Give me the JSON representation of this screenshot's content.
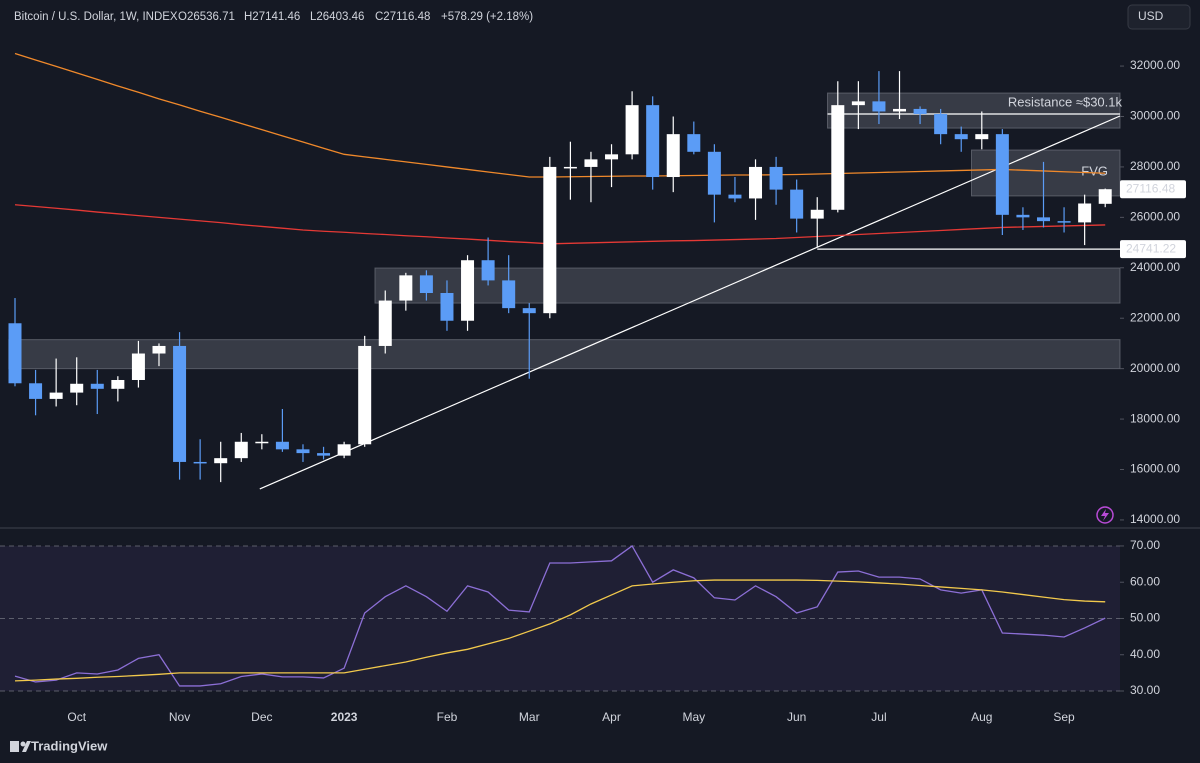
{
  "header": {
    "title": "Bitcoin / U.S. Dollar, 1W, INDEX",
    "ohlc": [
      "O26536.71",
      "H27141.46",
      "L26403.46",
      "C27116.48"
    ],
    "change": "+578.29 (+2.18%)",
    "currency": "USD",
    "brand": "TradingView"
  },
  "chart_data": [
    {
      "type": "candlestick",
      "categories": [
        null,
        null,
        null,
        "Oct",
        null,
        null,
        null,
        null,
        "Nov",
        null,
        null,
        null,
        "Dec",
        null,
        null,
        null,
        "2023",
        null,
        null,
        null,
        null,
        "Feb",
        null,
        null,
        null,
        "Mar",
        null,
        null,
        null,
        "Apr",
        null,
        null,
        null,
        "May",
        null,
        null,
        null,
        null,
        "Jun",
        null,
        null,
        null,
        "Jul",
        null,
        null,
        null,
        null,
        "Aug",
        null,
        null,
        null,
        "Sep",
        null,
        null
      ],
      "open": [
        21800,
        19420,
        18800,
        19050,
        19400,
        19200,
        19550,
        20600,
        20900,
        16300,
        16250,
        16450,
        17100,
        17100,
        16800,
        16650,
        16550,
        17000,
        20900,
        22700,
        23700,
        23000,
        21900,
        24300,
        23500,
        22400,
        22200,
        28000,
        28000,
        28300,
        28500,
        30450,
        27600,
        29300,
        28600,
        26900,
        26750,
        28000,
        27100,
        25950,
        26300,
        30450,
        30600,
        30200,
        30300,
        30100,
        29300,
        29100,
        29300,
        26100,
        26000,
        25850,
        25800,
        26536.71
      ],
      "high": [
        22800,
        19950,
        20400,
        20450,
        19950,
        19700,
        21100,
        21000,
        21450,
        17200,
        17100,
        17450,
        17400,
        18400,
        17000,
        16900,
        17100,
        21300,
        23100,
        23800,
        23900,
        23500,
        24500,
        25200,
        24500,
        22600,
        28400,
        29000,
        28600,
        28900,
        31000,
        30800,
        30000,
        29800,
        28900,
        27600,
        28300,
        28400,
        27500,
        26800,
        31400,
        31400,
        31800,
        31800,
        30400,
        30300,
        29600,
        30200,
        29500,
        26400,
        28200,
        26400,
        26900,
        27141.46
      ],
      "low": [
        19300,
        18150,
        18500,
        18550,
        18200,
        18700,
        19250,
        20100,
        15600,
        15600,
        15500,
        16300,
        16800,
        16700,
        16300,
        16400,
        16450,
        16900,
        20600,
        22300,
        22700,
        21500,
        21500,
        23300,
        22200,
        19600,
        22000,
        26700,
        26600,
        27200,
        28300,
        27100,
        27000,
        28500,
        25800,
        26600,
        25900,
        26500,
        25400,
        24800,
        26200,
        29500,
        29700,
        29900,
        29700,
        28900,
        28600,
        28700,
        25300,
        25500,
        25600,
        25400,
        24900,
        26403.46
      ],
      "close": [
        19420,
        18800,
        19050,
        19400,
        19200,
        19550,
        20600,
        20900,
        16300,
        16250,
        16450,
        17100,
        17100,
        16800,
        16650,
        16550,
        17000,
        20900,
        22700,
        23700,
        23000,
        21900,
        24300,
        23500,
        22400,
        22200,
        28000,
        28000,
        28300,
        28500,
        30450,
        27600,
        29300,
        28600,
        26900,
        26750,
        28000,
        27100,
        25950,
        26300,
        30450,
        30600,
        30200,
        30300,
        30100,
        29300,
        29100,
        29300,
        26100,
        26000,
        25850,
        25800,
        26550,
        27116.48
      ],
      "up_color": "#ffffff",
      "down_color": "#5b9cf6",
      "overlays": [
        {
          "color": "#f0892b",
          "values": [
            32500,
            32240,
            31990,
            31730,
            31470,
            31210,
            30960,
            30700,
            30460,
            30210,
            29970,
            29720,
            29480,
            29230,
            28990,
            28740,
            28500,
            28400,
            28300,
            28200,
            28100,
            28000,
            27900,
            27800,
            27700,
            27600,
            27600,
            27610,
            27620,
            27630,
            27640,
            27640,
            27650,
            27660,
            27670,
            27680,
            27680,
            27690,
            27700,
            27720,
            27740,
            27760,
            27780,
            27800,
            27820,
            27840,
            27860,
            27880,
            27900,
            27870,
            27840,
            27810,
            27780,
            27750
          ]
        },
        {
          "color": "#e53935",
          "values": [
            26500,
            26430,
            26360,
            26290,
            26210,
            26140,
            26070,
            26000,
            25930,
            25860,
            25790,
            25710,
            25640,
            25570,
            25500,
            25450,
            25410,
            25360,
            25320,
            25270,
            25230,
            25180,
            25140,
            25090,
            25040,
            25000,
            24950,
            24970,
            24990,
            25010,
            25030,
            25050,
            25070,
            25080,
            25100,
            25120,
            25140,
            25160,
            25200,
            25240,
            25280,
            25320,
            25360,
            25400,
            25440,
            25480,
            25520,
            25560,
            25600,
            25620,
            25640,
            25660,
            25680,
            25700
          ]
        }
      ],
      "zones": [
        {
          "low": 20000,
          "high": 21150,
          "color": "#787b86"
        },
        {
          "low": 22600,
          "high": 23990,
          "color": "#787b86"
        },
        {
          "low": 29540,
          "high": 30930,
          "color": "#787b86"
        },
        {
          "low": 26850,
          "high": 28670,
          "color": "#787b86",
          "label": "FVG"
        }
      ],
      "resistance": {
        "value": 30100,
        "label": "Resistance ≈$30.1k",
        "color": "#5b9cf6"
      },
      "support": {
        "value": 24741.22
      },
      "trendline": [
        15230,
        30020
      ],
      "ylim": [
        13720,
        34620
      ],
      "yticks": [
        {
          "value": 14000,
          "label": "14000.00"
        },
        {
          "value": 16000,
          "label": "16000.00"
        },
        {
          "value": 18000,
          "label": "18000.00"
        },
        {
          "value": 20000,
          "label": "20000.00"
        },
        {
          "value": 22000,
          "label": "22000.00"
        },
        {
          "value": 24000,
          "label": "24000.00"
        },
        {
          "value": 26000,
          "label": "26000.00"
        },
        {
          "value": 28000,
          "label": "28000.00"
        },
        {
          "value": 30000,
          "label": "30000.00"
        },
        {
          "value": 32000,
          "label": "32000.00"
        }
      ]
    },
    {
      "type": "line",
      "series": [
        {
          "color": "#8c6fd6",
          "values": [
            34.1,
            32.5,
            33.0,
            35.0,
            34.7,
            35.8,
            39.0,
            40.0,
            31.4,
            31.4,
            32.0,
            34.0,
            34.7,
            33.9,
            33.9,
            33.6,
            36.3,
            51.5,
            56.0,
            59.0,
            56.0,
            52.0,
            59.0,
            57.3,
            52.3,
            51.8,
            65.3,
            65.3,
            65.6,
            65.9,
            70.0,
            60.0,
            63.4,
            61.2,
            55.7,
            55.1,
            59.0,
            56.0,
            51.5,
            53.2,
            62.8,
            63.1,
            61.4,
            61.4,
            60.9,
            57.9,
            57.0,
            57.9,
            46.0,
            45.7,
            45.4,
            44.9,
            47.4,
            50.1
          ]
        },
        {
          "color": "#f2c94c",
          "values": [
            32.8,
            33.0,
            33.3,
            33.5,
            33.8,
            34.0,
            34.3,
            34.6,
            35.0,
            35.0,
            35.0,
            35.0,
            35.0,
            35.0,
            35.0,
            35.0,
            35.0,
            36.0,
            37.0,
            38.0,
            39.3,
            40.5,
            41.5,
            43.0,
            44.5,
            46.5,
            48.5,
            51.0,
            54.0,
            56.5,
            59.0,
            59.5,
            60.0,
            60.4,
            60.6,
            60.6,
            60.6,
            60.6,
            60.6,
            60.5,
            60.3,
            60.1,
            59.8,
            59.5,
            59.1,
            58.7,
            58.3,
            57.9,
            57.3,
            56.6,
            55.9,
            55.2,
            54.8,
            54.6
          ]
        }
      ],
      "band": [
        30,
        70
      ],
      "band_color": "#7e57c2",
      "hlines": [
        30,
        50,
        70
      ],
      "ylim": [
        19.8,
        74.4
      ],
      "yticks": [
        {
          "value": 30,
          "label": "30.00"
        },
        {
          "value": 40,
          "label": "40.00"
        },
        {
          "value": 50,
          "label": "50.00"
        },
        {
          "value": 60,
          "label": "60.00"
        },
        {
          "value": 70,
          "label": "70.00"
        }
      ]
    }
  ]
}
